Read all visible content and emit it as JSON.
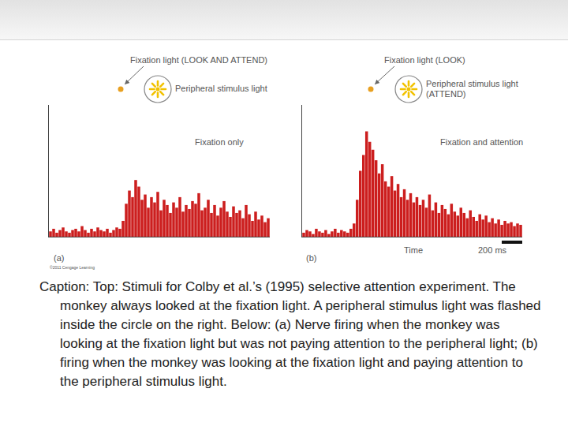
{
  "slide": {
    "caption": "Caption: Top: Stimuli for Colby et al.’s (1995) selective attention experiment. The monkey always looked at the fixation light. A peripheral stimulus light was flashed inside the circle on the right. Below: (a) Nerve firing when the monkey was looking at the fixation light but was not paying attention to the peripheral light; (b) firing when the monkey was looking at the fixation light and paying attention to the peripheral stimulus light.",
    "copyright": "©2011 Cengage Learning",
    "time_label": "Time",
    "scale_bar": "200 ms"
  },
  "panels": [
    {
      "label": "(a)",
      "fixation_label": "Fixation light (LOOK AND ATTEND)",
      "stimulus_label": [
        "Peripheral stimulus light"
      ]
    },
    {
      "label": "(b)",
      "fixation_label": "Fixation light (LOOK)",
      "stimulus_label": [
        "Peripheral stimulus light",
        "(ATTEND)"
      ]
    }
  ],
  "chart_data": [
    {
      "type": "bar",
      "title": "Fixation only",
      "categories": [
        null,
        null,
        null,
        null,
        null,
        null,
        null,
        null,
        null,
        null,
        null,
        null,
        null,
        null,
        null,
        null,
        null,
        null,
        null,
        null,
        null,
        null,
        null,
        null,
        null,
        null,
        null,
        null,
        null,
        null,
        null,
        null,
        null,
        null,
        null,
        null,
        null,
        null,
        null,
        null,
        null,
        null,
        null,
        null,
        null,
        null,
        null,
        null,
        null,
        null,
        null,
        null,
        null,
        null,
        null,
        null,
        null,
        null,
        null,
        null,
        null,
        null,
        null,
        null,
        null,
        null,
        null,
        null,
        null,
        null
      ],
      "values": [
        4,
        6,
        3,
        5,
        7,
        4,
        3,
        5,
        6,
        4,
        8,
        5,
        3,
        6,
        4,
        7,
        5,
        4,
        6,
        3,
        5,
        7,
        6,
        12,
        25,
        35,
        30,
        43,
        38,
        28,
        32,
        22,
        30,
        26,
        34,
        20,
        28,
        24,
        18,
        26,
        22,
        30,
        19,
        24,
        21,
        27,
        25,
        33,
        20,
        22,
        28,
        18,
        24,
        16,
        22,
        27,
        19,
        15,
        23,
        18,
        20,
        14,
        24,
        17,
        12,
        19,
        13,
        16,
        11,
        14
      ],
      "color": "#cc1e1e",
      "ylim": [
        0,
        100
      ],
      "yticks": [],
      "grid": false,
      "tick_labels": false
    },
    {
      "type": "bar",
      "title": "Fixation and attention",
      "categories": [
        null,
        null,
        null,
        null,
        null,
        null,
        null,
        null,
        null,
        null,
        null,
        null,
        null,
        null,
        null,
        null,
        null,
        null,
        null,
        null,
        null,
        null,
        null,
        null,
        null,
        null,
        null,
        null,
        null,
        null,
        null,
        null,
        null,
        null,
        null,
        null,
        null,
        null,
        null,
        null,
        null,
        null,
        null,
        null,
        null,
        null,
        null,
        null,
        null,
        null,
        null,
        null,
        null,
        null,
        null,
        null,
        null,
        null,
        null,
        null,
        null,
        null,
        null,
        null,
        null,
        null,
        null,
        null,
        null,
        null
      ],
      "values": [
        3,
        5,
        4,
        2,
        6,
        4,
        3,
        5,
        2,
        4,
        6,
        3,
        5,
        4,
        3,
        6,
        10,
        28,
        50,
        62,
        80,
        72,
        66,
        58,
        48,
        55,
        42,
        38,
        46,
        35,
        40,
        30,
        36,
        28,
        33,
        26,
        30,
        24,
        28,
        22,
        32,
        20,
        26,
        18,
        24,
        21,
        17,
        25,
        19,
        16,
        22,
        18,
        14,
        20,
        15,
        12,
        17,
        13,
        16,
        11,
        14,
        10,
        13,
        9,
        12,
        10,
        11,
        8,
        10,
        9
      ],
      "color": "#cc1e1e",
      "ylim": [
        0,
        100
      ],
      "yticks": [],
      "grid": false,
      "tick_labels": false
    }
  ]
}
